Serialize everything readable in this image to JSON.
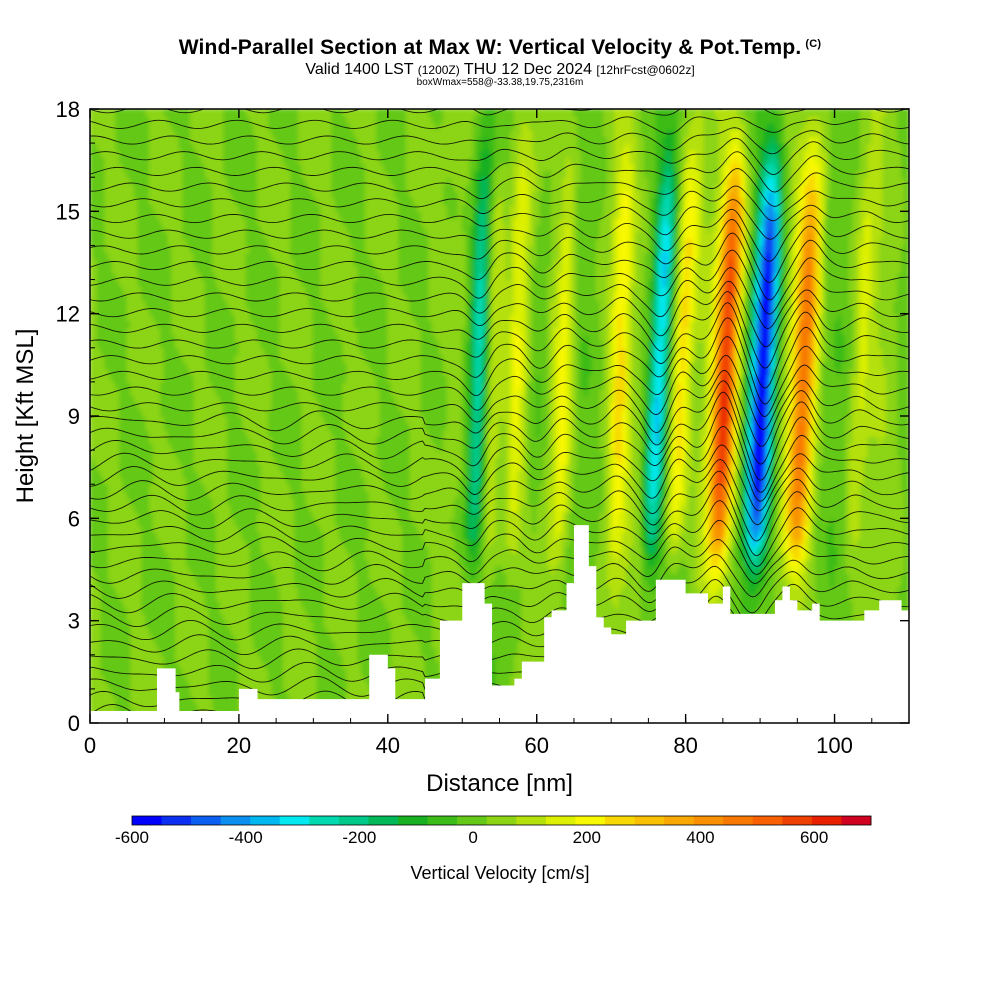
{
  "title": {
    "main": "Wind-Parallel Section at Max W: Vertical Velocity & Pot.Temp.",
    "copyright": "(C)"
  },
  "valid_line": {
    "a": "Valid 1400 LST",
    "b": "(1200Z)",
    "c": "THU 12 Dec 2024",
    "d": "[12hrFcst@0602z]"
  },
  "box_line": "boxWmax=558@-33.38,19.75,2316m",
  "chart_data": {
    "type": "heatmap",
    "xlabel": "Distance [nm]",
    "ylabel": "Height [Kft MSL]",
    "xlim": [
      0,
      110
    ],
    "ylim": [
      0,
      18
    ],
    "x_ticks": [
      "0",
      "20",
      "40",
      "60",
      "80",
      "100"
    ],
    "y_ticks": [
      "0",
      "3",
      "6",
      "9",
      "12",
      "15",
      "18"
    ],
    "colorbar": {
      "label": "Vertical Velocity [cm/s]",
      "tick_labels": [
        "-600",
        "-400",
        "-200",
        "0",
        "200",
        "400",
        "600"
      ],
      "ticks": [
        -600,
        -400,
        -200,
        0,
        200,
        400,
        600
      ],
      "range": [
        -600,
        700
      ],
      "colors": [
        "#0000ff",
        "#0a2ff0",
        "#0a5ef0",
        "#0a8ff0",
        "#00b7f0",
        "#00e8f0",
        "#00d8b0",
        "#00c888",
        "#00b858",
        "#18b020",
        "#3cbc18",
        "#64c818",
        "#8cd414",
        "#b4e00c",
        "#dcf000",
        "#f8f800",
        "#f8d800",
        "#f8c000",
        "#f8a800",
        "#f89000",
        "#f87800",
        "#f86000",
        "#f04000",
        "#e82000",
        "#d00020"
      ]
    },
    "features": {
      "updraft_cores": [
        {
          "x": 85,
          "w_cm_s": 560
        },
        {
          "x": 95.5,
          "w_cm_s": 420
        },
        {
          "x": 79,
          "w_cm_s": 240
        },
        {
          "x": 71,
          "w_cm_s": 180
        },
        {
          "x": 63.5,
          "w_cm_s": 180
        },
        {
          "x": 57,
          "w_cm_s": 160
        },
        {
          "x": 54,
          "w_cm_s": 160
        },
        {
          "x": 103,
          "w_cm_s": 100
        }
      ],
      "downdraft_cores": [
        {
          "x": 90,
          "w_cm_s": -600
        },
        {
          "x": 76,
          "w_cm_s": -330
        },
        {
          "x": 52,
          "w_cm_s": -280
        },
        {
          "x": 60,
          "w_cm_s": -90
        }
      ],
      "terrain_kft": [
        [
          0,
          0.35
        ],
        [
          8,
          0.35
        ],
        [
          9,
          1.6
        ],
        [
          11,
          1.6
        ],
        [
          11.5,
          0.9
        ],
        [
          12,
          0.35
        ],
        [
          19,
          0.35
        ],
        [
          20,
          1
        ],
        [
          22,
          1
        ],
        [
          22.5,
          0.7
        ],
        [
          37,
          0.7
        ],
        [
          37.5,
          2
        ],
        [
          39.5,
          2
        ],
        [
          40,
          1.6
        ],
        [
          41,
          0.7
        ],
        [
          44,
          0.7
        ],
        [
          45,
          1.3
        ],
        [
          46,
          1.3
        ],
        [
          47,
          3
        ],
        [
          49,
          3
        ],
        [
          50,
          4.1
        ],
        [
          51.5,
          4.1
        ],
        [
          53,
          3.5
        ],
        [
          54,
          1.1
        ],
        [
          56,
          1.1
        ],
        [
          57,
          1.3
        ],
        [
          58,
          1.8
        ],
        [
          60,
          1.8
        ],
        [
          61,
          3.1
        ],
        [
          62,
          3.3
        ],
        [
          64,
          4.1
        ],
        [
          65,
          5.8
        ],
        [
          66,
          5.8
        ],
        [
          67,
          4.6
        ],
        [
          68,
          3.1
        ],
        [
          69,
          2.8
        ],
        [
          70,
          2.6
        ],
        [
          72,
          3
        ],
        [
          75,
          3
        ],
        [
          76,
          4.2
        ],
        [
          79,
          4.2
        ],
        [
          80,
          3.8
        ],
        [
          82,
          3.8
        ],
        [
          83,
          3.5
        ],
        [
          84,
          3.5
        ],
        [
          85,
          4
        ],
        [
          86,
          3.2
        ],
        [
          90,
          3.2
        ],
        [
          92,
          3.6
        ],
        [
          93,
          4
        ],
        [
          94,
          3.6
        ],
        [
          95,
          3.3
        ],
        [
          97,
          3.5
        ],
        [
          98,
          3
        ],
        [
          103,
          3
        ],
        [
          104,
          3.3
        ],
        [
          106,
          3.6
        ],
        [
          108,
          3.6
        ],
        [
          109,
          3.3
        ],
        [
          110,
          3.3
        ]
      ]
    }
  }
}
